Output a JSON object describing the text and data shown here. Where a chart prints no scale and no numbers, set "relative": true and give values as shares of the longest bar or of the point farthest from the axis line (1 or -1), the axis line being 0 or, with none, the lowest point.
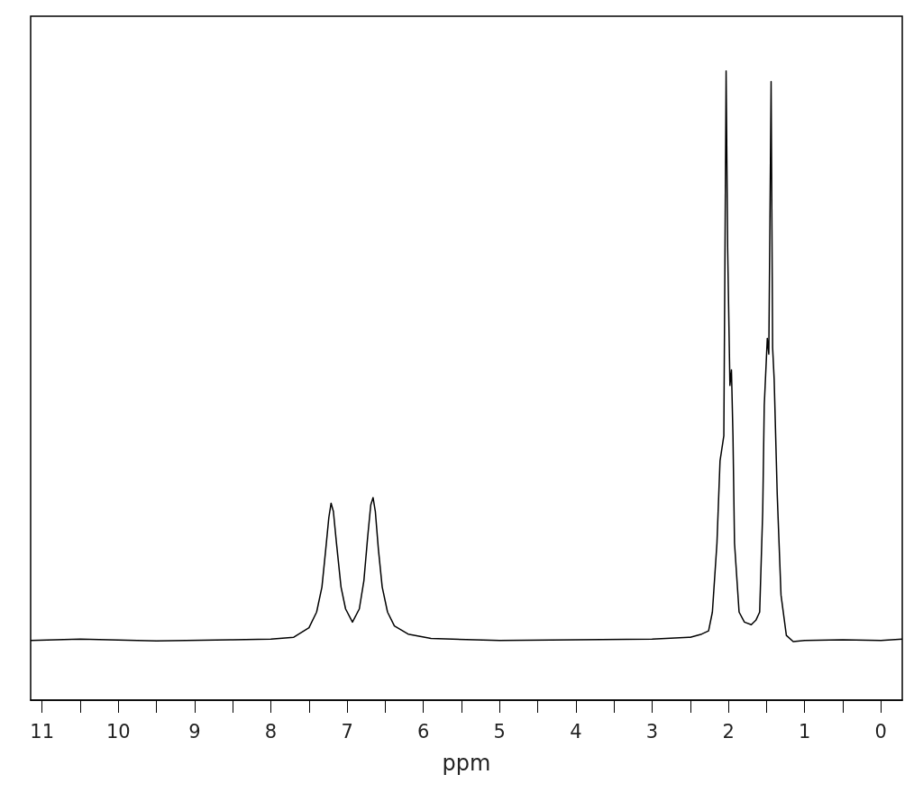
{
  "chart_data": {
    "type": "line",
    "xlabel": "ppm",
    "relative": true,
    "marker": "none",
    "xlim": [
      11.15,
      -0.28
    ],
    "xticks": [
      11,
      {
        "value": 10.5,
        "label": null
      },
      10,
      {
        "value": 9.5,
        "label": null
      },
      9,
      {
        "value": 8.5,
        "label": null
      },
      8,
      {
        "value": 7.5,
        "label": null
      },
      7,
      {
        "value": 6.5,
        "label": null
      },
      6,
      {
        "value": 5.5,
        "label": null
      },
      5,
      {
        "value": 4.5,
        "label": null
      },
      4,
      {
        "value": 3.5,
        "label": null
      },
      3,
      {
        "value": 2.5,
        "label": null
      },
      2,
      {
        "value": 1.5,
        "label": null
      },
      1,
      {
        "value": 0.5,
        "label": null
      },
      0
    ],
    "x": [
      11.15,
      10.5,
      9.5,
      8.5,
      8.0,
      7.7,
      7.5,
      7.4,
      7.33,
      7.28,
      7.24,
      7.21,
      7.18,
      7.14,
      7.08,
      7.02,
      6.93,
      6.84,
      6.78,
      6.73,
      6.69,
      6.66,
      6.63,
      6.59,
      6.54,
      6.47,
      6.38,
      6.2,
      5.9,
      5.0,
      4.0,
      3.0,
      2.5,
      2.35,
      2.26,
      2.21,
      2.15,
      2.11,
      2.06,
      2.03,
      2.01,
      1.98,
      1.96,
      1.94,
      1.92,
      1.86,
      1.79,
      1.7,
      1.64,
      1.59,
      1.55,
      1.53,
      1.49,
      1.47,
      1.44,
      1.42,
      1.4,
      1.36,
      1.31,
      1.24,
      1.15,
      1.0,
      0.5,
      0,
      -0.28
    ],
    "series": [
      {
        "color": "#000000",
        "values": [
          0.095,
          0.097,
          0.094,
          0.096,
          0.097,
          0.1,
          0.115,
          0.14,
          0.18,
          0.24,
          0.29,
          0.313,
          0.3,
          0.25,
          0.18,
          0.145,
          0.124,
          0.145,
          0.19,
          0.26,
          0.31,
          0.322,
          0.3,
          0.24,
          0.18,
          0.14,
          0.118,
          0.105,
          0.098,
          0.095,
          0.096,
          0.097,
          0.1,
          0.105,
          0.11,
          0.14,
          0.25,
          0.38,
          0.42,
          1.0,
          0.72,
          0.5,
          0.525,
          0.42,
          0.25,
          0.14,
          0.124,
          0.12,
          0.127,
          0.14,
          0.3,
          0.468,
          0.575,
          0.55,
          0.983,
          0.56,
          0.51,
          0.328,
          0.167,
          0.103,
          0.093,
          0.095,
          0.096,
          0.095,
          0.097
        ]
      }
    ]
  }
}
